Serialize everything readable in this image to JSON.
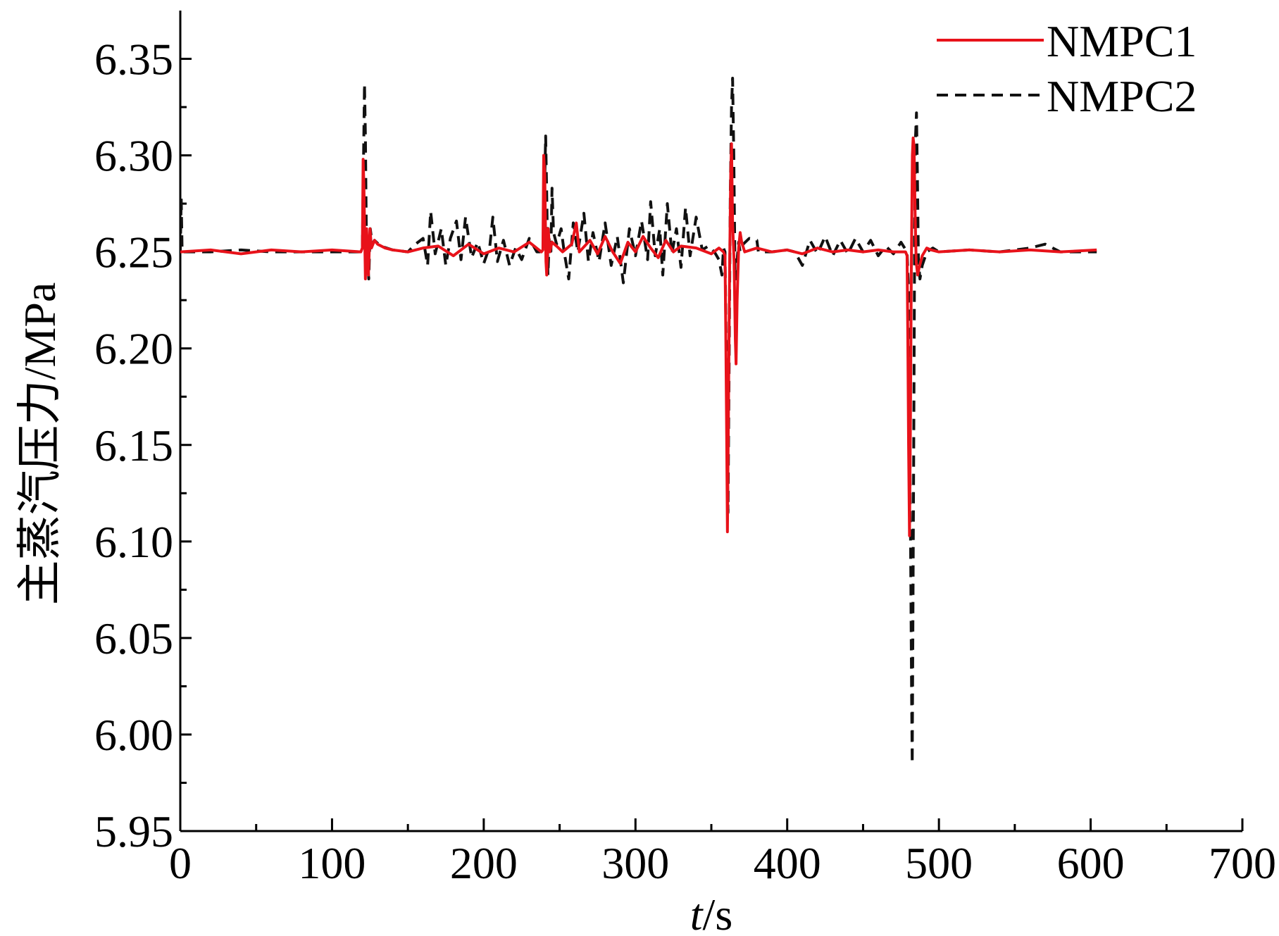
{
  "chart_data": {
    "type": "line",
    "xlabel_italic": "t",
    "xlabel_rest": "/s",
    "ylabel": "主蒸汽压力/MPa",
    "xlim": [
      0,
      700
    ],
    "ylim": [
      5.95,
      6.375
    ],
    "x_ticks": [
      0,
      100,
      200,
      300,
      400,
      500,
      600,
      700
    ],
    "x_tick_labels": [
      "0",
      "100",
      "200",
      "300",
      "400",
      "500",
      "600",
      "700"
    ],
    "y_ticks": [
      5.95,
      6.0,
      6.05,
      6.1,
      6.15,
      6.2,
      6.25,
      6.3,
      6.35
    ],
    "y_tick_labels": [
      "5.95",
      "6.00",
      "6.05",
      "6.10",
      "6.15",
      "6.20",
      "6.25",
      "6.30",
      "6.35"
    ],
    "legend_position": "top-right",
    "grid": false,
    "series": [
      {
        "name": "NMPC1",
        "color": "#e8121a",
        "style": "solid",
        "points": [
          [
            0,
            6.25
          ],
          [
            20,
            6.251
          ],
          [
            40,
            6.249
          ],
          [
            60,
            6.251
          ],
          [
            80,
            6.25
          ],
          [
            100,
            6.251
          ],
          [
            119,
            6.25
          ],
          [
            120,
            6.252
          ],
          [
            120.5,
            6.298
          ],
          [
            121,
            6.285
          ],
          [
            122,
            6.236
          ],
          [
            122.8,
            6.262
          ],
          [
            123.5,
            6.25
          ],
          [
            124,
            6.238
          ],
          [
            125,
            6.262
          ],
          [
            126,
            6.252
          ],
          [
            128,
            6.256
          ],
          [
            130,
            6.254
          ],
          [
            135,
            6.252
          ],
          [
            140,
            6.251
          ],
          [
            150,
            6.25
          ],
          [
            160,
            6.252
          ],
          [
            170,
            6.253
          ],
          [
            180,
            6.248
          ],
          [
            190,
            6.254
          ],
          [
            200,
            6.249
          ],
          [
            210,
            6.252
          ],
          [
            220,
            6.25
          ],
          [
            230,
            6.255
          ],
          [
            238,
            6.25
          ],
          [
            239,
            6.251
          ],
          [
            239.5,
            6.3
          ],
          [
            240.2,
            6.29
          ],
          [
            241,
            6.245
          ],
          [
            241.5,
            6.238
          ],
          [
            242.5,
            6.262
          ],
          [
            243.5,
            6.25
          ],
          [
            245,
            6.255
          ],
          [
            248,
            6.253
          ],
          [
            252,
            6.25
          ],
          [
            258,
            6.254
          ],
          [
            261,
            6.265
          ],
          [
            263,
            6.25
          ],
          [
            270,
            6.256
          ],
          [
            275,
            6.249
          ],
          [
            280,
            6.258
          ],
          [
            285,
            6.25
          ],
          [
            290,
            6.244
          ],
          [
            295,
            6.255
          ],
          [
            300,
            6.25
          ],
          [
            305,
            6.258
          ],
          [
            310,
            6.252
          ],
          [
            315,
            6.247
          ],
          [
            320,
            6.256
          ],
          [
            325,
            6.25
          ],
          [
            330,
            6.253
          ],
          [
            340,
            6.252
          ],
          [
            350,
            6.249
          ],
          [
            355,
            6.252
          ],
          [
            358,
            6.25
          ],
          [
            359,
            6.248
          ],
          [
            359.5,
            6.21
          ],
          [
            360,
            6.165
          ],
          [
            360.6,
            6.105
          ],
          [
            361.2,
            6.16
          ],
          [
            362,
            6.238
          ],
          [
            362.8,
            6.292
          ],
          [
            363.3,
            6.306
          ],
          [
            364,
            6.265
          ],
          [
            365,
            6.245
          ],
          [
            365.8,
            6.205
          ],
          [
            366.3,
            6.192
          ],
          [
            367,
            6.225
          ],
          [
            368,
            6.252
          ],
          [
            369,
            6.26
          ],
          [
            370,
            6.255
          ],
          [
            372,
            6.25
          ],
          [
            380,
            6.252
          ],
          [
            390,
            6.25
          ],
          [
            400,
            6.251
          ],
          [
            410,
            6.249
          ],
          [
            420,
            6.252
          ],
          [
            430,
            6.25
          ],
          [
            440,
            6.251
          ],
          [
            450,
            6.25
          ],
          [
            460,
            6.251
          ],
          [
            470,
            6.25
          ],
          [
            478,
            6.25
          ],
          [
            479,
            6.248
          ],
          [
            479.5,
            6.205
          ],
          [
            480,
            6.15
          ],
          [
            480.6,
            6.103
          ],
          [
            481.2,
            6.16
          ],
          [
            481.8,
            6.24
          ],
          [
            482.5,
            6.3
          ],
          [
            483,
            6.309
          ],
          [
            483.6,
            6.305
          ],
          [
            484.3,
            6.27
          ],
          [
            485,
            6.245
          ],
          [
            486,
            6.238
          ],
          [
            487,
            6.242
          ],
          [
            489,
            6.248
          ],
          [
            492,
            6.252
          ],
          [
            495,
            6.251
          ],
          [
            500,
            6.25
          ],
          [
            520,
            6.251
          ],
          [
            540,
            6.25
          ],
          [
            560,
            6.251
          ],
          [
            580,
            6.25
          ],
          [
            604,
            6.251
          ]
        ]
      },
      {
        "name": "NMPC2",
        "color": "#111111",
        "style": "dashed",
        "points": [
          [
            0,
            6.25
          ],
          [
            0.6,
            6.278
          ],
          [
            1.2,
            6.25
          ],
          [
            20,
            6.25
          ],
          [
            40,
            6.251
          ],
          [
            60,
            6.25
          ],
          [
            80,
            6.25
          ],
          [
            100,
            6.25
          ],
          [
            119,
            6.25
          ],
          [
            120,
            6.252
          ],
          [
            120.8,
            6.3
          ],
          [
            121.4,
            6.337
          ],
          [
            122,
            6.31
          ],
          [
            122.6,
            6.26
          ],
          [
            123.3,
            6.248
          ],
          [
            124.2,
            6.236
          ],
          [
            125.2,
            6.262
          ],
          [
            126.5,
            6.254
          ],
          [
            128,
            6.256
          ],
          [
            132,
            6.253
          ],
          [
            140,
            6.251
          ],
          [
            150,
            6.25
          ],
          [
            155,
            6.254
          ],
          [
            160,
            6.257
          ],
          [
            163,
            6.243
          ],
          [
            165,
            6.271
          ],
          [
            168,
            6.249
          ],
          [
            172,
            6.262
          ],
          [
            175,
            6.243
          ],
          [
            178,
            6.257
          ],
          [
            182,
            6.266
          ],
          [
            185,
            6.246
          ],
          [
            188,
            6.268
          ],
          [
            192,
            6.247
          ],
          [
            196,
            6.255
          ],
          [
            200,
            6.244
          ],
          [
            204,
            6.253
          ],
          [
            206,
            6.268
          ],
          [
            209,
            6.245
          ],
          [
            213,
            6.256
          ],
          [
            217,
            6.243
          ],
          [
            221,
            6.252
          ],
          [
            225,
            6.246
          ],
          [
            230,
            6.257
          ],
          [
            235,
            6.25
          ],
          [
            238,
            6.25
          ],
          [
            239,
            6.251
          ],
          [
            240,
            6.28
          ],
          [
            240.8,
            6.31
          ],
          [
            241.5,
            6.28
          ],
          [
            242.3,
            6.238
          ],
          [
            243.2,
            6.258
          ],
          [
            244.2,
            6.248
          ],
          [
            245,
            6.283
          ],
          [
            246,
            6.26
          ],
          [
            248,
            6.254
          ],
          [
            251,
            6.262
          ],
          [
            253,
            6.25
          ],
          [
            256,
            6.236
          ],
          [
            259,
            6.265
          ],
          [
            262,
            6.25
          ],
          [
            266,
            6.27
          ],
          [
            269,
            6.245
          ],
          [
            272,
            6.26
          ],
          [
            276,
            6.245
          ],
          [
            280,
            6.265
          ],
          [
            284,
            6.243
          ],
          [
            288,
            6.258
          ],
          [
            292,
            6.234
          ],
          [
            296,
            6.262
          ],
          [
            300,
            6.248
          ],
          [
            304,
            6.266
          ],
          [
            308,
            6.246
          ],
          [
            310,
            6.276
          ],
          [
            313,
            6.248
          ],
          [
            316,
            6.262
          ],
          [
            318,
            6.238
          ],
          [
            321,
            6.275
          ],
          [
            324,
            6.249
          ],
          [
            327,
            6.262
          ],
          [
            330,
            6.242
          ],
          [
            333,
            6.273
          ],
          [
            336,
            6.248
          ],
          [
            340,
            6.268
          ],
          [
            344,
            6.251
          ],
          [
            348,
            6.253
          ],
          [
            352,
            6.25
          ],
          [
            355,
            6.246
          ],
          [
            357,
            6.238
          ],
          [
            358,
            6.252
          ],
          [
            359,
            6.25
          ],
          [
            359.8,
            6.2
          ],
          [
            360.5,
            6.145
          ],
          [
            361,
            6.115
          ],
          [
            361.8,
            6.2
          ],
          [
            362.5,
            6.28
          ],
          [
            363.3,
            6.325
          ],
          [
            364,
            6.34
          ],
          [
            364.8,
            6.3
          ],
          [
            365.6,
            6.24
          ],
          [
            366.4,
            6.236
          ],
          [
            367.2,
            6.248
          ],
          [
            368,
            6.255
          ],
          [
            369,
            6.25
          ],
          [
            371,
            6.254
          ],
          [
            375,
            6.257
          ],
          [
            380,
            6.256
          ],
          [
            381,
            6.25
          ],
          [
            390,
            6.25
          ],
          [
            400,
            6.251
          ],
          [
            405,
            6.25
          ],
          [
            410,
            6.243
          ],
          [
            415,
            6.256
          ],
          [
            420,
            6.249
          ],
          [
            425,
            6.258
          ],
          [
            430,
            6.248
          ],
          [
            435,
            6.256
          ],
          [
            440,
            6.249
          ],
          [
            445,
            6.257
          ],
          [
            450,
            6.25
          ],
          [
            455,
            6.256
          ],
          [
            460,
            6.248
          ],
          [
            465,
            6.253
          ],
          [
            470,
            6.249
          ],
          [
            475,
            6.255
          ],
          [
            479,
            6.25
          ],
          [
            480,
            6.23
          ],
          [
            480.8,
            6.16
          ],
          [
            481.4,
            6.09
          ],
          [
            482,
            6.02
          ],
          [
            482.4,
            5.985
          ],
          [
            482.8,
            6.05
          ],
          [
            483.4,
            6.15
          ],
          [
            484,
            6.26
          ],
          [
            484.6,
            6.31
          ],
          [
            485.2,
            6.322
          ],
          [
            485.8,
            6.29
          ],
          [
            486.5,
            6.245
          ],
          [
            487.5,
            6.236
          ],
          [
            489,
            6.243
          ],
          [
            492,
            6.25
          ],
          [
            496,
            6.252
          ],
          [
            500,
            6.25
          ],
          [
            520,
            6.251
          ],
          [
            540,
            6.25
          ],
          [
            560,
            6.252
          ],
          [
            570,
            6.254
          ],
          [
            580,
            6.25
          ],
          [
            604,
            6.25
          ]
        ]
      }
    ]
  }
}
